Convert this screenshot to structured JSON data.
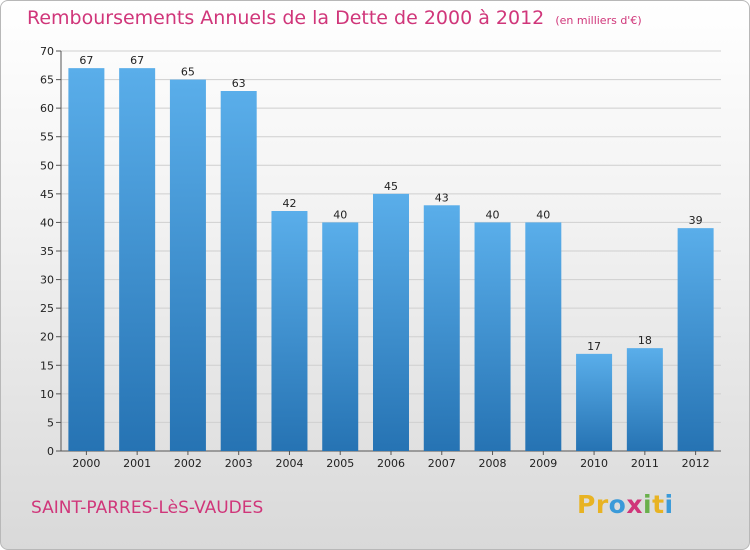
{
  "header": {
    "title": "Remboursements Annuels de la Dette de 2000 à 2012",
    "unit": "(en milliers d'€)"
  },
  "footer": {
    "commune": "SAINT-PARRES-LèS-VAUDES",
    "logo_letters": [
      "P",
      "r",
      "o",
      "x",
      "i",
      "t",
      "i"
    ],
    "logo_colors": [
      "#e8b323",
      "#e8b323",
      "#3a9ad9",
      "#d0367a",
      "#6ab04c",
      "#e8b323",
      "#3a9ad9"
    ]
  },
  "colors": {
    "bar_light": "#5aaeea",
    "bar_dark": "#2673b3",
    "title": "#d0367a"
  },
  "chart_data": {
    "type": "bar",
    "title": "Remboursements Annuels de la Dette de 2000 à 2012",
    "subtitle": "(en milliers d'€)",
    "xlabel": "",
    "ylabel": "",
    "categories": [
      "2000",
      "2001",
      "2002",
      "2003",
      "2004",
      "2005",
      "2006",
      "2007",
      "2008",
      "2009",
      "2010",
      "2011",
      "2012"
    ],
    "values": [
      67,
      67,
      65,
      63,
      42,
      40,
      45,
      43,
      40,
      40,
      17,
      18,
      39
    ],
    "ylim": [
      0,
      70
    ],
    "yticks": [
      0,
      5,
      10,
      15,
      20,
      25,
      30,
      35,
      40,
      45,
      50,
      55,
      60,
      65,
      70
    ],
    "grid": true,
    "legend": "none"
  }
}
